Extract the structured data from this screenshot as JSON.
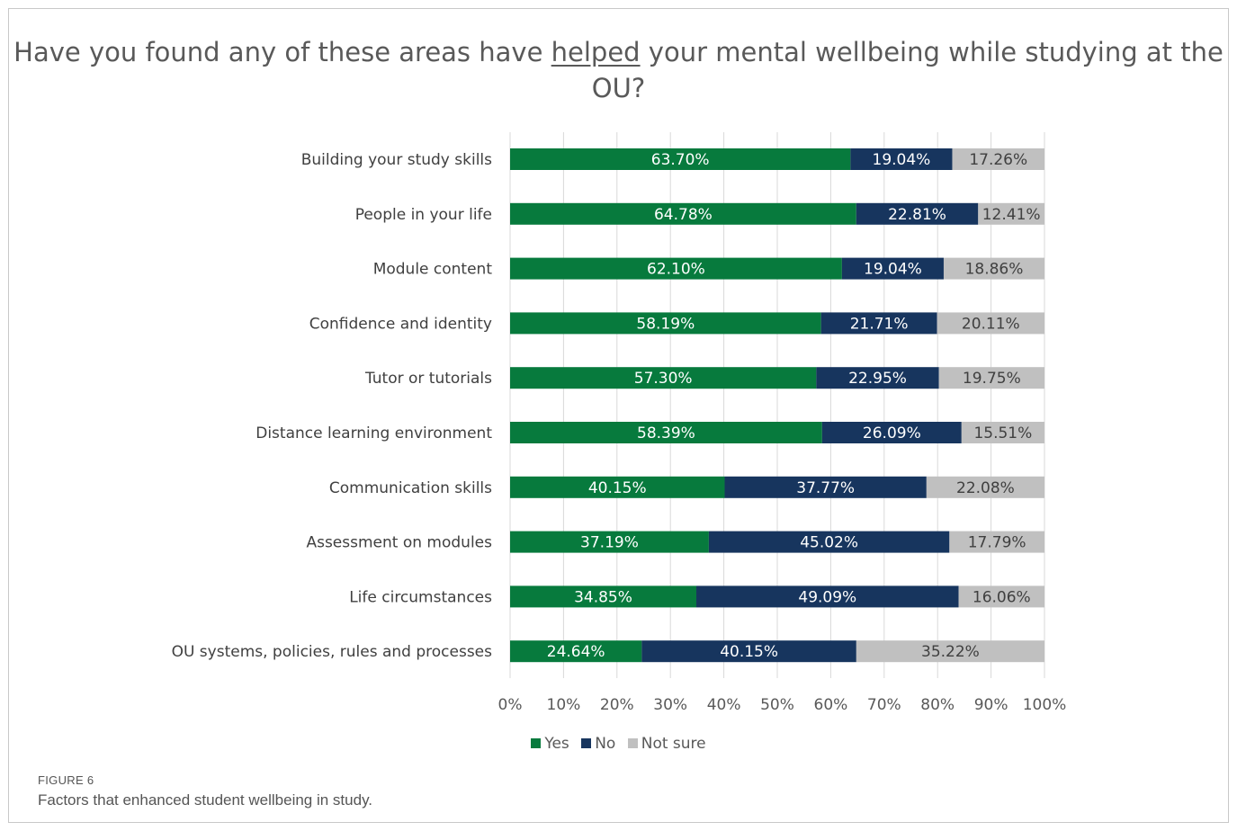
{
  "figure": {
    "label": "FIGURE 6",
    "caption": "Factors that enhanced student wellbeing in study."
  },
  "chart_data": {
    "type": "bar",
    "orientation": "horizontal",
    "stacked": true,
    "title_parts": [
      "Have you found any of these areas have ",
      "helped",
      " your mental wellbeing while studying at the OU?"
    ],
    "categories": [
      "Building your study skills",
      "People in your life",
      "Module content",
      "Confidence and identity",
      "Tutor or tutorials",
      "Distance learning environment",
      "Communication skills",
      "Assessment on modules",
      "Life circumstances",
      "OU systems, policies, rules and processes"
    ],
    "series": [
      {
        "name": "Yes",
        "color": "#077a3d",
        "text_color": "#ffffff",
        "values": [
          63.7,
          64.78,
          62.1,
          58.19,
          57.3,
          58.39,
          40.15,
          37.19,
          34.85,
          24.64
        ],
        "labels": [
          "63.70%",
          "64.78%",
          "62.10%",
          "58.19%",
          "57.30%",
          "58.39%",
          "40.15%",
          "37.19%",
          "34.85%",
          "24.64%"
        ]
      },
      {
        "name": "No",
        "color": "#17355e",
        "text_color": "#ffffff",
        "values": [
          19.04,
          22.81,
          19.04,
          21.71,
          22.95,
          26.09,
          37.77,
          45.02,
          49.09,
          40.15
        ],
        "labels": [
          "19.04%",
          "22.81%",
          "19.04%",
          "21.71%",
          "22.95%",
          "26.09%",
          "37.77%",
          "45.02%",
          "49.09%",
          "40.15%"
        ]
      },
      {
        "name": "Not sure",
        "color": "#c0c0c0",
        "text_color": "#404040",
        "values": [
          17.26,
          12.41,
          18.86,
          20.11,
          19.75,
          15.51,
          22.08,
          17.79,
          16.06,
          35.22
        ],
        "labels": [
          "17.26%",
          "12.41%",
          "18.86%",
          "20.11%",
          "19.75%",
          "15.51%",
          "22.08%",
          "17.79%",
          "16.06%",
          "35.22%"
        ]
      }
    ],
    "xlim": [
      0,
      100
    ],
    "xticks": [
      "0%",
      "10%",
      "20%",
      "30%",
      "40%",
      "50%",
      "60%",
      "70%",
      "80%",
      "90%",
      "100%"
    ],
    "grid": true,
    "legend_position": "bottom"
  }
}
